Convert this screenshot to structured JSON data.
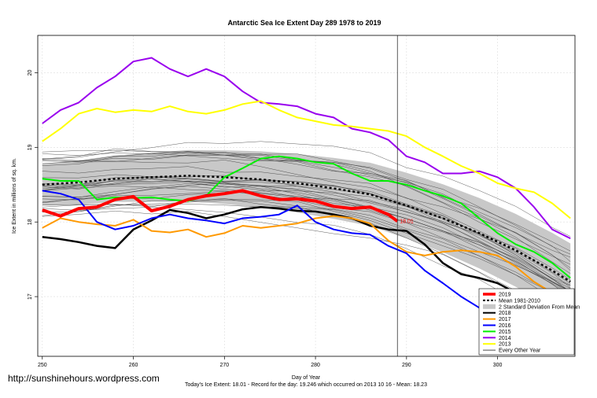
{
  "chart_data": {
    "type": "line",
    "title": "Antarctic Sea Ice Extent Day 289 1978 to 2019",
    "xlabel": "Day of Year",
    "ylabel": "Ice Extent in millions of sq. km.",
    "xlim": [
      249.5,
      308.5
    ],
    "ylim": [
      16.2,
      20.5
    ],
    "x_ticks": [
      "250",
      "260",
      "270",
      "280",
      "290",
      "300"
    ],
    "y_ticks": [
      "17",
      "18",
      "19",
      "20"
    ],
    "grid": true,
    "legend_position": "bottom-right",
    "current_day": 289,
    "current_value_label": "18.01",
    "series": [
      {
        "name": "2019",
        "color": "#ff0000",
        "width": 4,
        "dash": "",
        "points": [
          [
            250,
            18.16
          ],
          [
            252,
            18.08
          ],
          [
            254,
            18.18
          ],
          [
            256,
            18.2
          ],
          [
            258,
            18.3
          ],
          [
            260,
            18.34
          ],
          [
            262,
            18.15
          ],
          [
            264,
            18.21
          ],
          [
            266,
            18.3
          ],
          [
            268,
            18.35
          ],
          [
            270,
            18.38
          ],
          [
            272,
            18.42
          ],
          [
            274,
            18.35
          ],
          [
            276,
            18.3
          ],
          [
            278,
            18.31
          ],
          [
            280,
            18.28
          ],
          [
            282,
            18.21
          ],
          [
            284,
            18.18
          ],
          [
            286,
            18.2
          ],
          [
            288,
            18.1
          ],
          [
            289,
            18.01
          ]
        ]
      },
      {
        "name": "Mean 1981-2010",
        "color": "#000000",
        "width": 2.5,
        "dash": "3,3",
        "points": [
          [
            250,
            18.5
          ],
          [
            254,
            18.53
          ],
          [
            258,
            18.58
          ],
          [
            262,
            18.6
          ],
          [
            266,
            18.62
          ],
          [
            270,
            18.6
          ],
          [
            274,
            18.57
          ],
          [
            278,
            18.52
          ],
          [
            282,
            18.45
          ],
          [
            286,
            18.37
          ],
          [
            290,
            18.22
          ],
          [
            294,
            18.05
          ],
          [
            298,
            17.85
          ],
          [
            302,
            17.62
          ],
          [
            306,
            17.35
          ],
          [
            308,
            17.2
          ]
        ]
      },
      {
        "name": "2018",
        "color": "#000000",
        "width": 2.5,
        "dash": "",
        "points": [
          [
            250,
            17.8
          ],
          [
            252,
            17.77
          ],
          [
            254,
            17.73
          ],
          [
            256,
            17.68
          ],
          [
            258,
            17.65
          ],
          [
            260,
            17.9
          ],
          [
            262,
            18.02
          ],
          [
            264,
            18.16
          ],
          [
            266,
            18.12
          ],
          [
            268,
            18.05
          ],
          [
            270,
            18.1
          ],
          [
            272,
            18.17
          ],
          [
            274,
            18.2
          ],
          [
            276,
            18.18
          ],
          [
            278,
            18.15
          ],
          [
            280,
            18.14
          ],
          [
            282,
            18.1
          ],
          [
            284,
            18.05
          ],
          [
            286,
            17.95
          ],
          [
            288,
            17.9
          ],
          [
            290,
            17.88
          ],
          [
            292,
            17.7
          ],
          [
            294,
            17.45
          ],
          [
            296,
            17.3
          ],
          [
            298,
            17.25
          ],
          [
            300,
            17.18
          ],
          [
            302,
            17.05
          ],
          [
            304,
            16.95
          ],
          [
            306,
            16.75
          ],
          [
            308,
            16.55
          ]
        ]
      },
      {
        "name": "2017",
        "color": "#ff9900",
        "width": 2,
        "dash": "",
        "points": [
          [
            250,
            17.92
          ],
          [
            252,
            18.05
          ],
          [
            254,
            18.0
          ],
          [
            256,
            17.97
          ],
          [
            258,
            17.95
          ],
          [
            260,
            18.03
          ],
          [
            262,
            17.88
          ],
          [
            264,
            17.86
          ],
          [
            266,
            17.9
          ],
          [
            268,
            17.8
          ],
          [
            270,
            17.85
          ],
          [
            272,
            17.95
          ],
          [
            274,
            17.92
          ],
          [
            276,
            17.95
          ],
          [
            278,
            17.98
          ],
          [
            280,
            18.05
          ],
          [
            282,
            18.08
          ],
          [
            284,
            18.05
          ],
          [
            286,
            17.98
          ],
          [
            288,
            17.75
          ],
          [
            290,
            17.6
          ],
          [
            292,
            17.55
          ],
          [
            294,
            17.6
          ],
          [
            296,
            17.62
          ],
          [
            298,
            17.6
          ],
          [
            300,
            17.55
          ],
          [
            302,
            17.4
          ],
          [
            304,
            17.2
          ],
          [
            306,
            17.05
          ],
          [
            308,
            16.9
          ]
        ]
      },
      {
        "name": "2016",
        "color": "#0000ff",
        "width": 2,
        "dash": "",
        "points": [
          [
            250,
            18.42
          ],
          [
            252,
            18.38
          ],
          [
            254,
            18.3
          ],
          [
            256,
            18.0
          ],
          [
            258,
            17.9
          ],
          [
            260,
            17.95
          ],
          [
            262,
            18.05
          ],
          [
            264,
            18.1
          ],
          [
            266,
            18.05
          ],
          [
            268,
            18.02
          ],
          [
            270,
            17.98
          ],
          [
            272,
            18.05
          ],
          [
            274,
            18.07
          ],
          [
            276,
            18.1
          ],
          [
            278,
            18.22
          ],
          [
            280,
            18.0
          ],
          [
            282,
            17.9
          ],
          [
            284,
            17.85
          ],
          [
            286,
            17.83
          ],
          [
            288,
            17.68
          ],
          [
            290,
            17.58
          ],
          [
            292,
            17.35
          ],
          [
            294,
            17.18
          ],
          [
            296,
            17.0
          ],
          [
            298,
            16.85
          ],
          [
            300,
            16.8
          ],
          [
            302,
            16.65
          ],
          [
            304,
            16.55
          ],
          [
            306,
            16.48
          ],
          [
            308,
            16.35
          ]
        ]
      },
      {
        "name": "2015",
        "color": "#00ee00",
        "width": 2,
        "dash": "",
        "points": [
          [
            250,
            18.58
          ],
          [
            252,
            18.55
          ],
          [
            254,
            18.55
          ],
          [
            256,
            18.3
          ],
          [
            258,
            18.33
          ],
          [
            260,
            18.32
          ],
          [
            262,
            18.33
          ],
          [
            264,
            18.3
          ],
          [
            266,
            18.28
          ],
          [
            268,
            18.35
          ],
          [
            270,
            18.6
          ],
          [
            272,
            18.72
          ],
          [
            274,
            18.85
          ],
          [
            276,
            18.88
          ],
          [
            278,
            18.85
          ],
          [
            280,
            18.8
          ],
          [
            282,
            18.78
          ],
          [
            284,
            18.65
          ],
          [
            286,
            18.55
          ],
          [
            288,
            18.55
          ],
          [
            290,
            18.5
          ],
          [
            292,
            18.42
          ],
          [
            294,
            18.35
          ],
          [
            296,
            18.25
          ],
          [
            298,
            18.05
          ],
          [
            300,
            17.85
          ],
          [
            302,
            17.7
          ],
          [
            304,
            17.6
          ],
          [
            306,
            17.45
          ],
          [
            308,
            17.25
          ]
        ]
      },
      {
        "name": "2014",
        "color": "#9900ee",
        "width": 2,
        "dash": "",
        "points": [
          [
            250,
            19.32
          ],
          [
            252,
            19.5
          ],
          [
            254,
            19.6
          ],
          [
            256,
            19.8
          ],
          [
            258,
            19.95
          ],
          [
            260,
            20.15
          ],
          [
            262,
            20.2
          ],
          [
            264,
            20.05
          ],
          [
            266,
            19.95
          ],
          [
            268,
            20.05
          ],
          [
            270,
            19.95
          ],
          [
            272,
            19.75
          ],
          [
            274,
            19.6
          ],
          [
            276,
            19.58
          ],
          [
            278,
            19.55
          ],
          [
            280,
            19.45
          ],
          [
            282,
            19.4
          ],
          [
            284,
            19.25
          ],
          [
            286,
            19.2
          ],
          [
            288,
            19.1
          ],
          [
            290,
            18.88
          ],
          [
            292,
            18.8
          ],
          [
            294,
            18.65
          ],
          [
            296,
            18.65
          ],
          [
            298,
            18.68
          ],
          [
            300,
            18.6
          ],
          [
            302,
            18.45
          ],
          [
            304,
            18.2
          ],
          [
            306,
            17.9
          ],
          [
            308,
            17.78
          ]
        ]
      },
      {
        "name": "2013",
        "color": "#ffff00",
        "width": 2,
        "dash": "",
        "points": [
          [
            250,
            19.08
          ],
          [
            252,
            19.25
          ],
          [
            254,
            19.45
          ],
          [
            256,
            19.52
          ],
          [
            258,
            19.47
          ],
          [
            260,
            19.5
          ],
          [
            262,
            19.48
          ],
          [
            264,
            19.55
          ],
          [
            266,
            19.48
          ],
          [
            268,
            19.45
          ],
          [
            270,
            19.5
          ],
          [
            272,
            19.58
          ],
          [
            274,
            19.62
          ],
          [
            276,
            19.5
          ],
          [
            278,
            19.4
          ],
          [
            280,
            19.35
          ],
          [
            282,
            19.3
          ],
          [
            284,
            19.28
          ],
          [
            286,
            19.25
          ],
          [
            288,
            19.22
          ],
          [
            290,
            19.15
          ],
          [
            292,
            19.0
          ],
          [
            294,
            18.88
          ],
          [
            296,
            18.75
          ],
          [
            298,
            18.65
          ],
          [
            300,
            18.52
          ],
          [
            302,
            18.45
          ],
          [
            304,
            18.4
          ],
          [
            306,
            18.25
          ],
          [
            308,
            18.05
          ]
        ]
      }
    ],
    "legend": [
      {
        "label": "2019",
        "color": "#ff0000",
        "style": "line"
      },
      {
        "label": "Mean 1981-2010",
        "color": "#000000",
        "style": "dashed"
      },
      {
        "label": "2 Standard Deviation From Mean",
        "color": "#c8c8c8",
        "style": "fill"
      },
      {
        "label": "2018",
        "color": "#000000",
        "style": "line"
      },
      {
        "label": "2017",
        "color": "#ff9900",
        "style": "line"
      },
      {
        "label": "2016",
        "color": "#0000ff",
        "style": "line"
      },
      {
        "label": "2015",
        "color": "#00ee00",
        "style": "line"
      },
      {
        "label": "2014",
        "color": "#9900ee",
        "style": "line"
      },
      {
        "label": "2013",
        "color": "#ffff00",
        "style": "line"
      },
      {
        "label": "Every Other Year",
        "color": "#000000",
        "style": "thin"
      }
    ]
  },
  "footer": {
    "url": "http://sunshinehours.wordpress.com",
    "stats": "Today's Ice Extent: 18.01  - Record for the day: 19.246 which occurred on 2013 10 16  - Mean: 18.23"
  }
}
